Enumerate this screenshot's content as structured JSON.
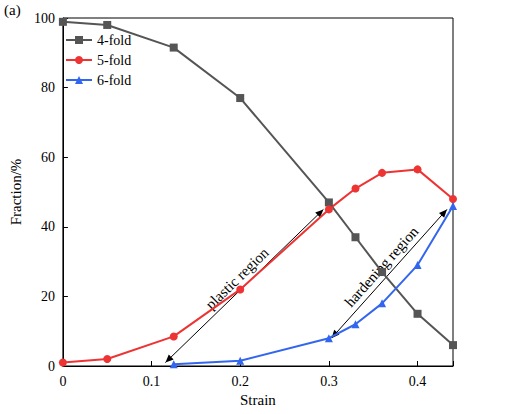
{
  "chart_data": {
    "type": "line",
    "panel_label": "(a)",
    "xlabel": "Strain",
    "ylabel": "Fraction/%",
    "x": [
      0,
      0.05,
      0.125,
      0.2,
      0.3,
      0.33,
      0.36,
      0.4,
      0.44
    ],
    "series": [
      {
        "name": "4-fold",
        "color": "#555555",
        "marker": "square",
        "values": [
          98.9,
          98,
          91.5,
          77,
          47,
          37,
          27,
          15,
          6
        ]
      },
      {
        "name": "5-fold",
        "color": "#ee3333",
        "marker": "circle",
        "values": [
          1,
          2,
          8.5,
          22,
          45,
          51,
          55.5,
          56.5,
          48
        ]
      },
      {
        "name": "6-fold",
        "color": "#3366ee",
        "marker": "triangle",
        "values": [
          null,
          null,
          0.5,
          1.5,
          8,
          12,
          18,
          29,
          46
        ]
      }
    ],
    "annotations": [
      "plastic region",
      "hardening region"
    ],
    "xlim": [
      0,
      0.44
    ],
    "xticks": [
      0,
      0.1,
      0.2,
      0.3,
      0.4
    ],
    "ylim": [
      0,
      100
    ],
    "yticks": [
      0,
      20,
      40,
      60,
      80,
      100
    ],
    "legend": "upper left",
    "grid": false
  }
}
